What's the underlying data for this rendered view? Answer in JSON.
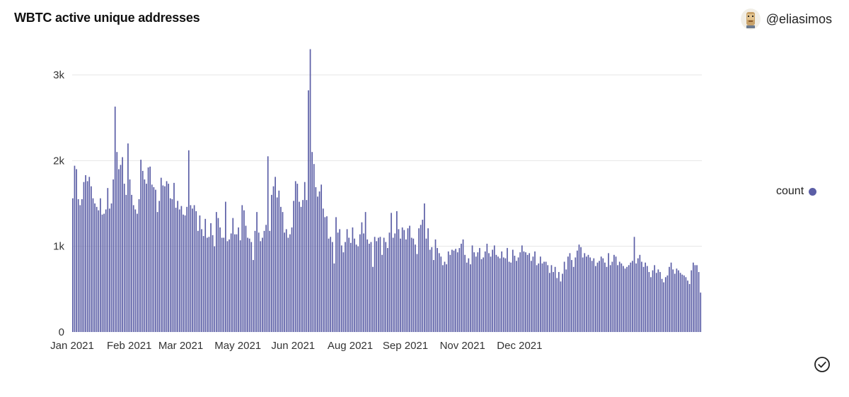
{
  "header": {
    "title": "WBTC active unique addresses",
    "author": "@eliasimos"
  },
  "legend": {
    "label": "count"
  },
  "colors": {
    "bar": "#5b5ea6",
    "grid": "#e6e6e6"
  },
  "icons": {
    "avatar": "avatar-icon",
    "check": "check-circle-icon"
  },
  "chart_data": {
    "type": "bar",
    "title": "WBTC active unique addresses",
    "xlabel": "",
    "ylabel": "",
    "ylim": [
      0,
      3300
    ],
    "y_ticks": [
      {
        "value": 0,
        "label": "0"
      },
      {
        "value": 1000,
        "label": "1k"
      },
      {
        "value": 2000,
        "label": "2k"
      },
      {
        "value": 3000,
        "label": "3k"
      }
    ],
    "x_ticks": [
      {
        "day_index": 0,
        "label": "Jan 2021"
      },
      {
        "day_index": 31,
        "label": "Feb 2021"
      },
      {
        "day_index": 59,
        "label": "Mar 2021"
      },
      {
        "day_index": 90,
        "label": "May 2021"
      },
      {
        "day_index": 120,
        "label": "Jun 2021"
      },
      {
        "day_index": 151,
        "label": "Aug 2021"
      },
      {
        "day_index": 181,
        "label": "Sep 2021"
      },
      {
        "day_index": 212,
        "label": "Nov 2021"
      },
      {
        "day_index": 243,
        "label": "Dec 2021"
      }
    ],
    "series": [
      {
        "name": "count",
        "values": [
          1560,
          1940,
          1900,
          1550,
          1480,
          1550,
          1750,
          1830,
          1760,
          1810,
          1700,
          1560,
          1500,
          1460,
          1420,
          1560,
          1370,
          1380,
          1430,
          1680,
          1440,
          1500,
          1780,
          2630,
          2100,
          1900,
          1950,
          2040,
          1730,
          1600,
          2200,
          1780,
          1600,
          1480,
          1430,
          1380,
          1550,
          2010,
          1880,
          1780,
          1730,
          1920,
          1930,
          1720,
          1690,
          1660,
          1400,
          1530,
          1800,
          1710,
          1700,
          1760,
          1730,
          1560,
          1550,
          1740,
          1450,
          1530,
          1430,
          1470,
          1370,
          1360,
          1460,
          2120,
          1480,
          1440,
          1480,
          1410,
          1180,
          1360,
          1200,
          1120,
          1320,
          1100,
          1110,
          1270,
          1130,
          1000,
          1400,
          1330,
          1220,
          1100,
          1100,
          1520,
          1060,
          1080,
          1150,
          1330,
          1140,
          1140,
          1220,
          1070,
          1480,
          1420,
          1240,
          1100,
          1090,
          1050,
          840,
          1180,
          1400,
          1160,
          1060,
          1100,
          1180,
          1250,
          2050,
          1180,
          1600,
          1700,
          1810,
          1570,
          1650,
          1460,
          1400,
          1160,
          1200,
          1100,
          1140,
          1220,
          1530,
          1760,
          1730,
          1520,
          1460,
          1540,
          1750,
          1540,
          2820,
          3300,
          2100,
          1960,
          1690,
          1580,
          1640,
          1720,
          1440,
          1340,
          1350,
          1090,
          1110,
          1050,
          800,
          1340,
          1160,
          1200,
          1010,
          930,
          1050,
          1200,
          1100,
          1040,
          1220,
          1090,
          1020,
          1000,
          1140,
          1280,
          1150,
          1400,
          1080,
          1030,
          1050,
          760,
          1110,
          1060,
          1100,
          1110,
          900,
          1100,
          1050,
          980,
          1160,
          1390,
          1100,
          1150,
          1410,
          1200,
          1090,
          1220,
          1190,
          1080,
          1210,
          1240,
          1100,
          1090,
          1020,
          910,
          1210,
          1250,
          1310,
          1500,
          1090,
          1210,
          960,
          990,
          840,
          1080,
          980,
          920,
          880,
          780,
          820,
          790,
          940,
          900,
          960,
          950,
          970,
          930,
          980,
          1030,
          1080,
          900,
          810,
          860,
          790,
          1010,
          930,
          880,
          930,
          980,
          850,
          870,
          940,
          1030,
          920,
          880,
          960,
          1010,
          900,
          880,
          860,
          940,
          870,
          860,
          980,
          820,
          810,
          960,
          890,
          830,
          870,
          930,
          1010,
          940,
          930,
          900,
          920,
          830,
          880,
          940,
          780,
          800,
          880,
          800,
          820,
          820,
          780,
          690,
          780,
          700,
          760,
          630,
          700,
          590,
          680,
          820,
          730,
          880,
          920,
          840,
          760,
          870,
          950,
          1020,
          990,
          870,
          920,
          880,
          900,
          870,
          830,
          860,
          770,
          810,
          830,
          880,
          860,
          810,
          760,
          920,
          780,
          820,
          900,
          880,
          780,
          820,
          800,
          770,
          740,
          760,
          780,
          810,
          830,
          1110,
          800,
          860,
          900,
          820,
          760,
          810,
          770,
          700,
          640,
          720,
          780,
          690,
          730,
          700,
          620,
          580,
          640,
          660,
          760,
          810,
          730,
          680,
          740,
          720,
          690,
          670,
          660,
          640,
          600,
          560,
          720,
          810,
          780,
          780,
          700,
          460
        ]
      }
    ]
  }
}
